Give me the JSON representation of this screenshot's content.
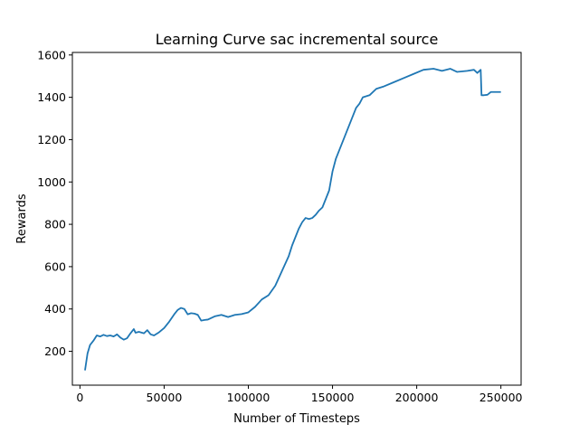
{
  "chart_data": {
    "type": "line",
    "title": "Learning Curve sac incremental source",
    "xlabel": "Number of Timesteps",
    "ylabel": "Rewards",
    "xlim": [
      -4500,
      262000
    ],
    "ylim": [
      40,
      1612
    ],
    "xticks": [
      0,
      50000,
      100000,
      150000,
      200000,
      250000
    ],
    "yticks": [
      200,
      400,
      600,
      800,
      1000,
      1200,
      1400,
      1600
    ],
    "grid": false,
    "series": [
      {
        "color": "#1f77b4",
        "x": [
          3000,
          4500,
          6000,
          8000,
          10000,
          12000,
          14000,
          16000,
          18000,
          20000,
          22000,
          24000,
          26000,
          28000,
          30000,
          32000,
          33000,
          35000,
          38000,
          40000,
          42000,
          44000,
          47000,
          50000,
          53000,
          56000,
          58000,
          60000,
          62000,
          64000,
          66000,
          68000,
          70000,
          72000,
          74000,
          76000,
          80000,
          84000,
          88000,
          92000,
          96000,
          100000,
          104000,
          108000,
          112000,
          116000,
          120000,
          124000,
          126000,
          128000,
          130000,
          132000,
          134000,
          136000,
          138000,
          140000,
          142000,
          144000,
          146000,
          148000,
          150000,
          152000,
          154000,
          156000,
          158000,
          160000,
          162000,
          164000,
          166000,
          168000,
          172000,
          176000,
          180000,
          186000,
          192000,
          198000,
          204000,
          210000,
          215000,
          220000,
          224000,
          230000,
          234000,
          236000,
          238000,
          238500,
          240000,
          242000,
          244000,
          248000,
          250000
        ],
        "y": [
          110,
          190,
          230,
          250,
          275,
          270,
          278,
          272,
          275,
          270,
          280,
          265,
          255,
          262,
          285,
          305,
          288,
          292,
          285,
          300,
          280,
          275,
          290,
          310,
          340,
          375,
          395,
          405,
          400,
          375,
          380,
          378,
          372,
          345,
          348,
          350,
          365,
          372,
          362,
          372,
          376,
          384,
          410,
          445,
          465,
          510,
          580,
          650,
          700,
          740,
          780,
          810,
          830,
          825,
          830,
          845,
          865,
          880,
          920,
          960,
          1050,
          1110,
          1150,
          1190,
          1230,
          1270,
          1310,
          1350,
          1370,
          1400,
          1410,
          1440,
          1450,
          1470,
          1490,
          1510,
          1530,
          1535,
          1525,
          1535,
          1520,
          1525,
          1530,
          1515,
          1530,
          1410,
          1410,
          1412,
          1425,
          1425,
          1425
        ]
      }
    ]
  }
}
